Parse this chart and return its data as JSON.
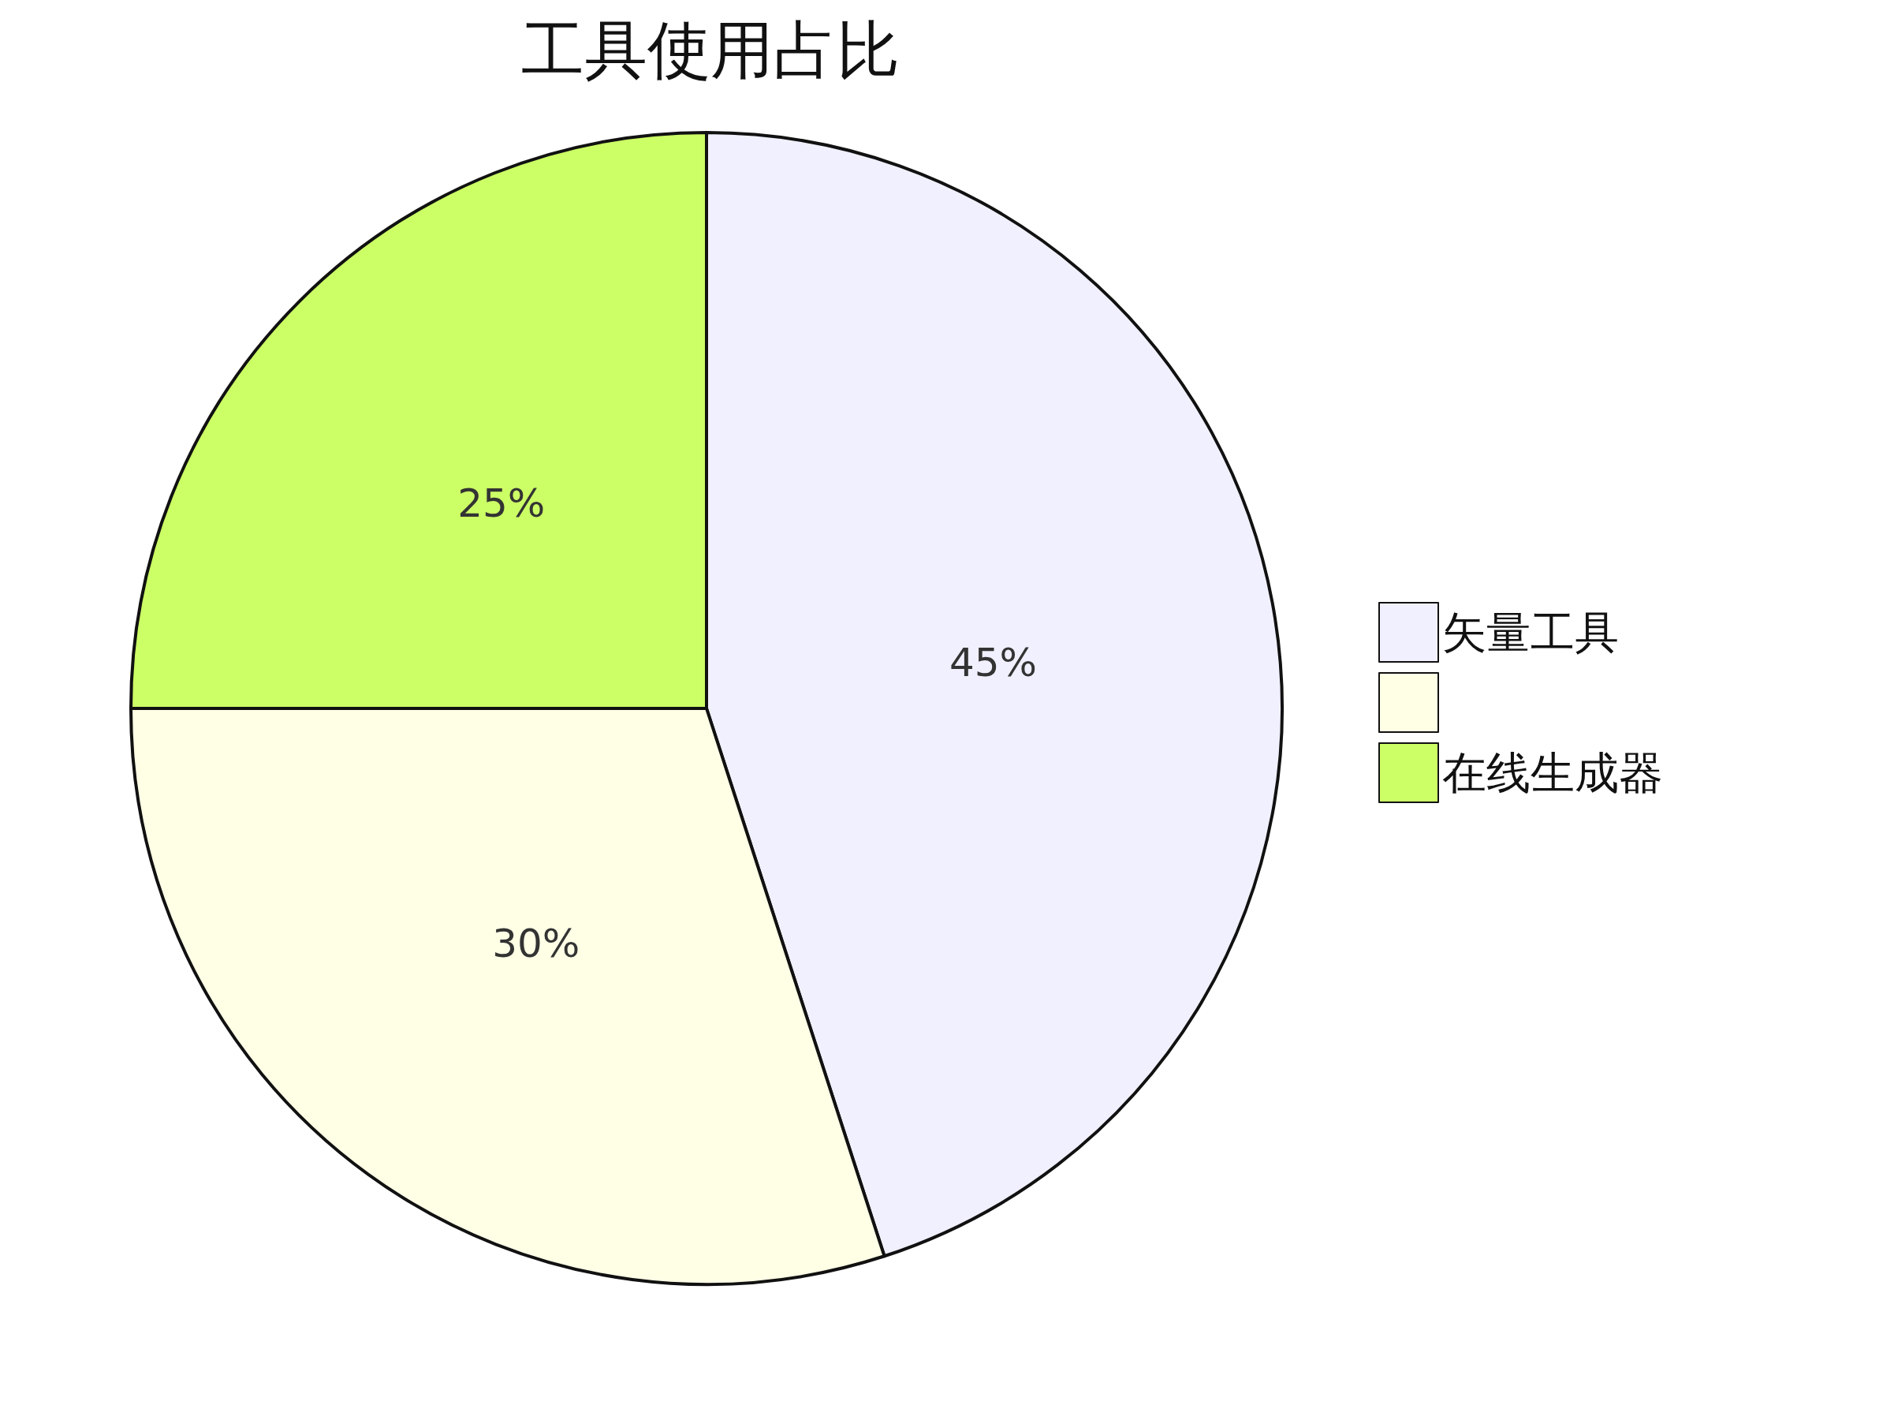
{
  "chart_data": {
    "type": "pie",
    "title": "工具使用占比",
    "categories": [
      "矢量工具",
      null,
      "在线生成器"
    ],
    "values": [
      45,
      30,
      25
    ],
    "colors": [
      "#f0f0ff",
      "#ffffe6",
      "#ccff66"
    ],
    "value_labels": [
      "45%",
      "30%",
      "25%"
    ],
    "legend": "right"
  }
}
